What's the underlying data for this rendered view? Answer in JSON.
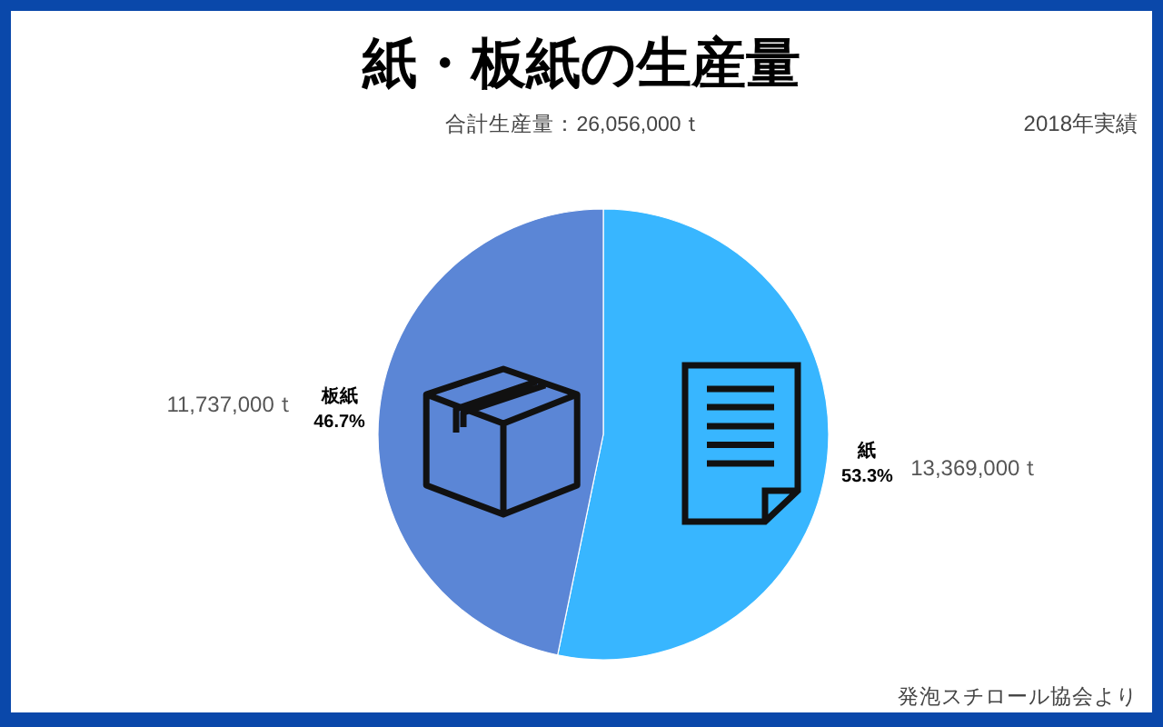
{
  "chart_data": {
    "type": "pie",
    "title": "紙・板紙の生産量",
    "subtitle": "合計生産量：26,056,000ｔ",
    "categories": [
      "紙",
      "板紙"
    ],
    "values": [
      13369000,
      11737000
    ],
    "colors": [
      "#38b6ff",
      "#5b86d6"
    ],
    "value_labels": [
      "13,369,000ｔ",
      "11,737,000ｔ"
    ],
    "annotations": [
      "53.3%",
      "46.7%",
      "2018年実績",
      "発泡スチロール協会より"
    ]
  }
}
